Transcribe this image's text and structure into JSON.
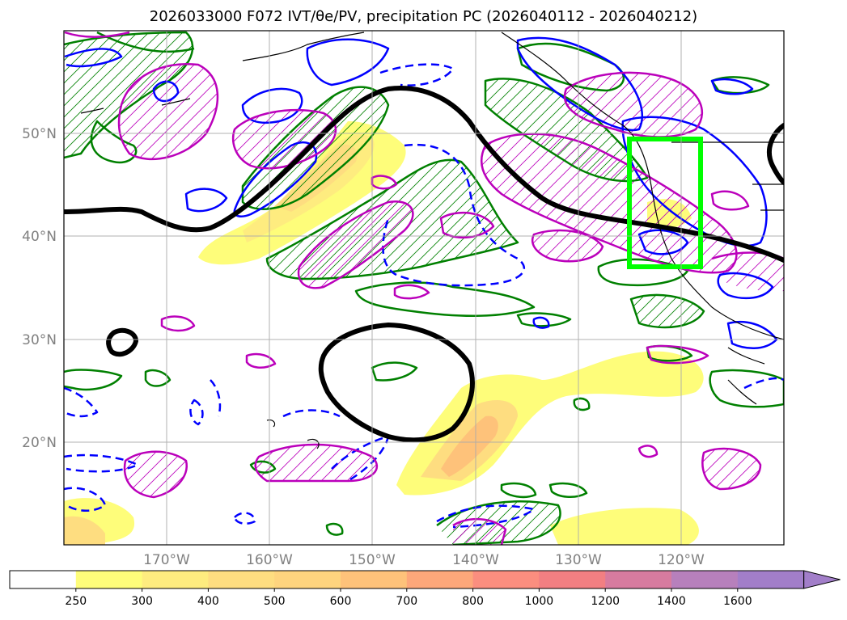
{
  "title": "2026033000 F072 IVT/θe/PV, precipitation PC (2026040112 - 2026040212)",
  "lat_labels": [
    "50°N",
    "40°N",
    "30°N",
    "20°N"
  ],
  "lon_labels": [
    "170°W",
    "160°W",
    "150°W",
    "140°W",
    "130°W",
    "120°W"
  ],
  "colorbar": {
    "ticks": [
      "250",
      "300",
      "400",
      "500",
      "600",
      "700",
      "800",
      "1000",
      "1200",
      "1400",
      "1600"
    ],
    "colors": [
      "#ffffff",
      "#fefd7a",
      "#feec7f",
      "#fedd80",
      "#fed47e",
      "#fec27a",
      "#fda77a",
      "#fb8e7f",
      "#f27f82",
      "#d77b9f",
      "#b780bc",
      "#a27ec9"
    ],
    "extend": "max"
  },
  "map": {
    "lat_range": [
      10,
      60
    ],
    "lon_range": [
      -180,
      -110
    ],
    "box_color": "#00ff00",
    "jet_color": "#000000",
    "pv_color": "#0000ff",
    "theta_color": "#008000",
    "prec_color": "#bb00bb"
  }
}
